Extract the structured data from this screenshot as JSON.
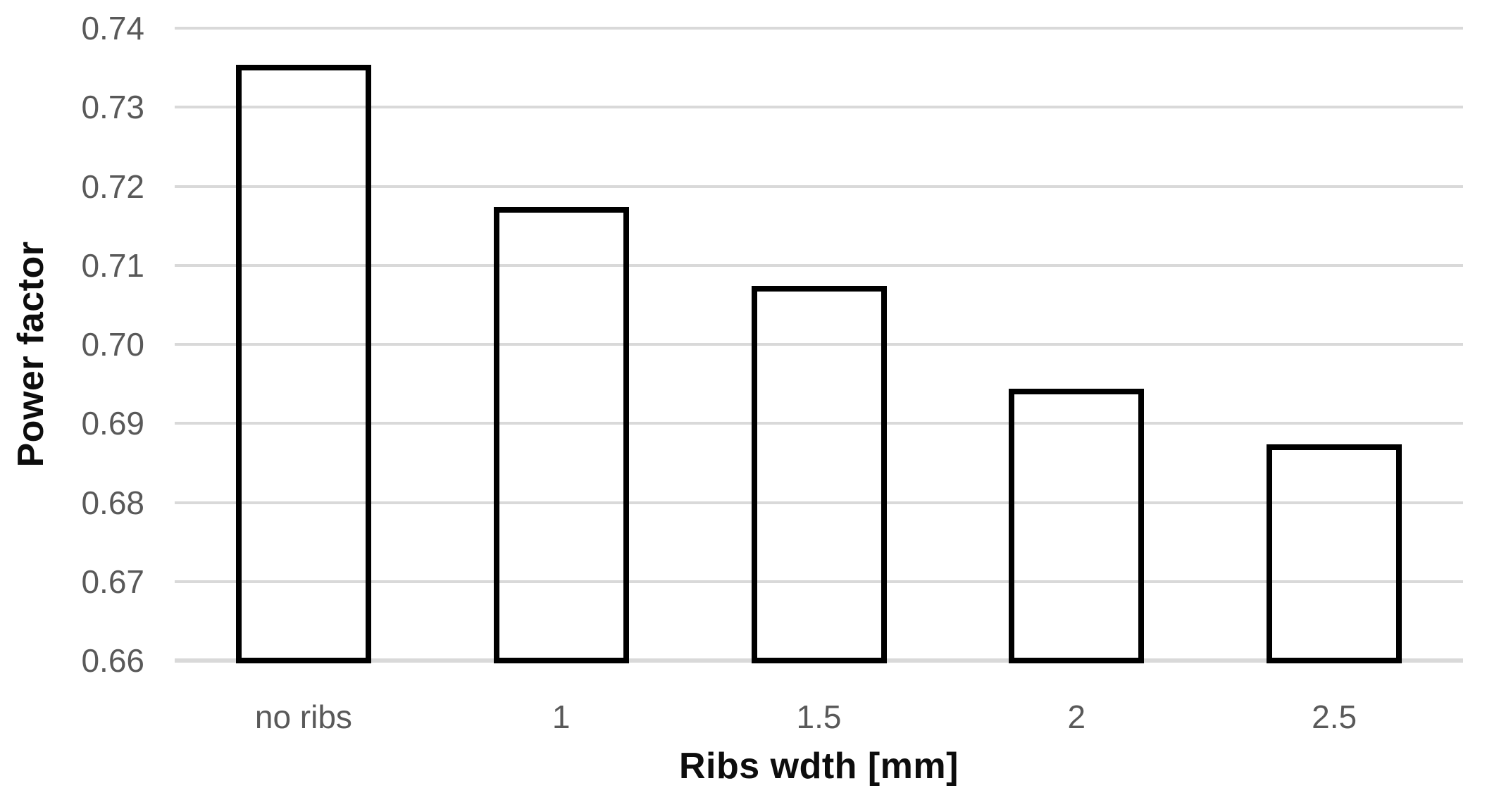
{
  "chart_data": {
    "type": "bar",
    "title": "",
    "xlabel": "Ribs wdth [mm]",
    "ylabel": "Power factor",
    "categories": [
      "no ribs",
      "1",
      "1.5",
      "2",
      "2.5"
    ],
    "values": [
      0.735,
      0.717,
      0.707,
      0.694,
      0.687
    ],
    "ylim": [
      0.66,
      0.74
    ],
    "y_tick_step": 0.01,
    "y_tick_labels": [
      "0.66",
      "0.67",
      "0.68",
      "0.69",
      "0.70",
      "0.71",
      "0.72",
      "0.73",
      "0.74"
    ],
    "grid": "horizontal",
    "legend_position": "none",
    "colors": {
      "bar_fill": "transparent",
      "bar_border": "#000000",
      "gridline": "#d9d9d9",
      "axis_line": "#d9d9d9",
      "tick_label": "#595959",
      "axis_title": "#0d0d0d"
    }
  }
}
